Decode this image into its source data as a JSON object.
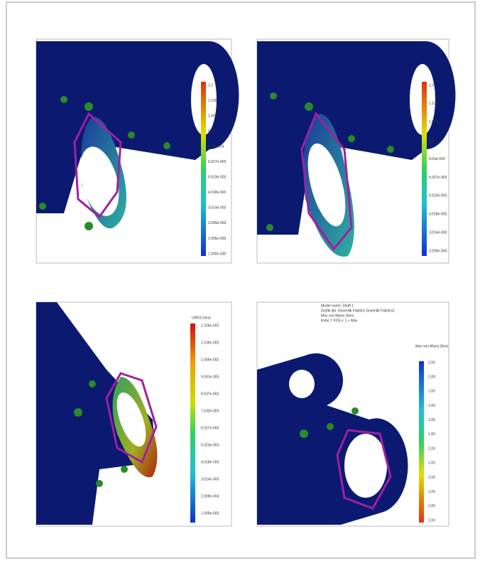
{
  "panels": [
    {
      "legend_labels": [
        "1.2",
        "1.105",
        "1.005",
        "9.04",
        "8.03e-003",
        "6.027e-003",
        "5.023e-003",
        "4.018e-003",
        "3.014e-003",
        "2.009e-003",
        "1.005e-003",
        "1.000e-030"
      ]
    },
    {
      "legend_labels": [
        "1.2",
        "1.105",
        "1.005",
        "9.0",
        "8.03e-003",
        "6.027e-003",
        "5.023e-003",
        "4.018e-003",
        "3.014e-003",
        "2.009e-003"
      ]
    },
    {
      "legend_title": "URES (mm)",
      "legend_labels": [
        "1.205e-002",
        "1.105e-002",
        "1.005e-002",
        "9.041e-003",
        "8.037e-003",
        "7.032e-003",
        "6.027e-003",
        "5.023e-003",
        "4.018e-003",
        "3.014e-003",
        "2.009e-003",
        "1.005e-003"
      ]
    },
    {
      "header": [
        "Model name: Shaft 1",
        "Grafik tipi: Güvenlik Faktörü Güvenlik Faktörü1",
        "Max von Mises Stres",
        "Kriter = FOS < 1    < Max"
      ],
      "legend_title": "Max von Mises Stres",
      "legend_labels": [
        "1.00",
        "1.00",
        "1.00",
        "1.00",
        "1.00",
        "1.00",
        "1.00",
        "1.00",
        "1.00",
        "1.00",
        "1.00",
        "1.00"
      ]
    }
  ]
}
